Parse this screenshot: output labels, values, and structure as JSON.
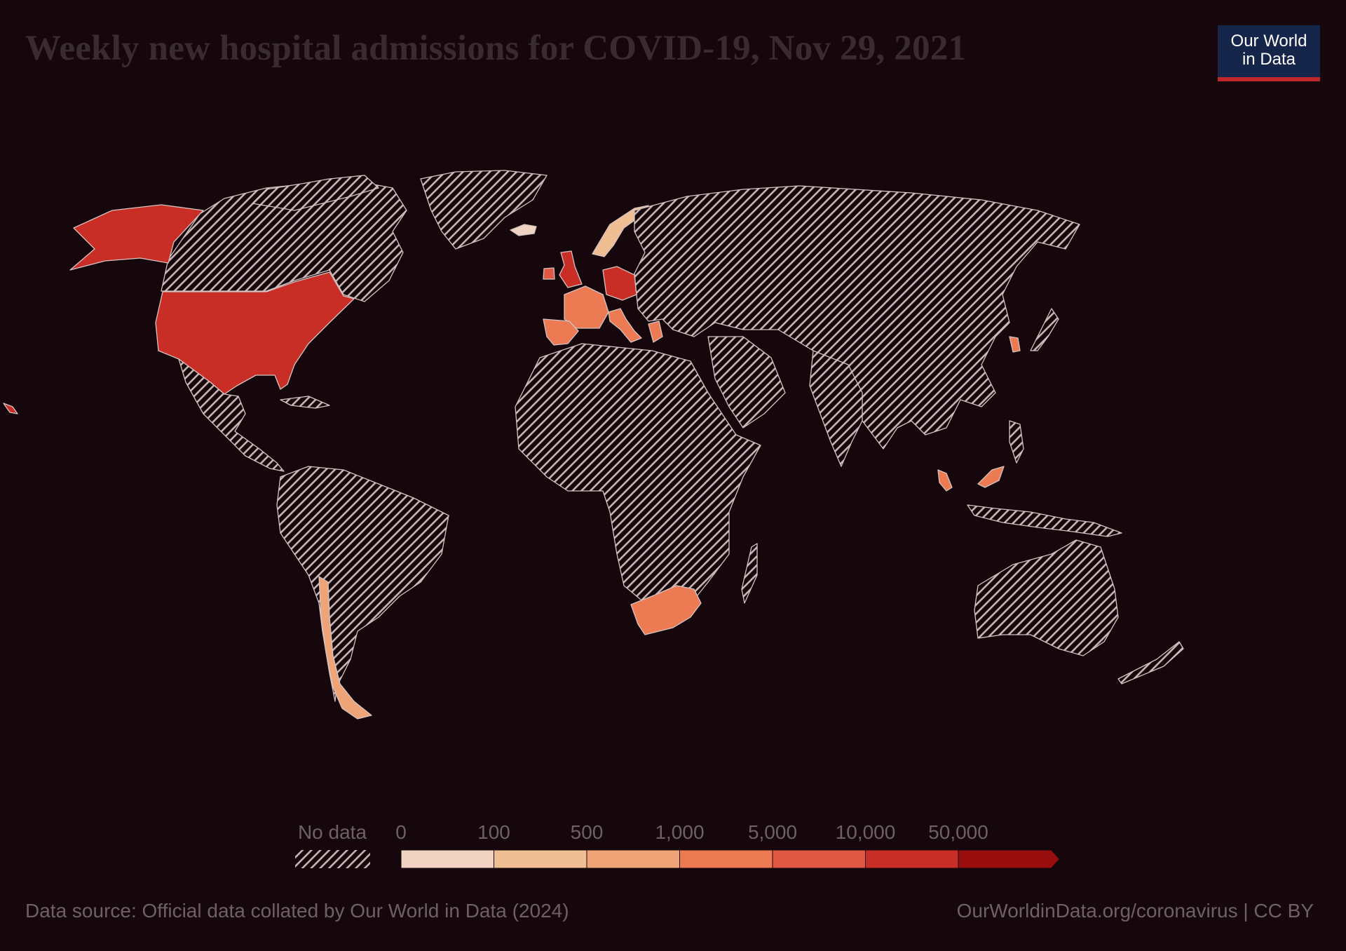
{
  "header": {
    "title": "Weekly new hospital admissions for COVID-19, Nov 29, 2021",
    "logo_line1": "Our World",
    "logo_line2": "in Data"
  },
  "legend": {
    "no_data_label": "No data",
    "bins": [
      {
        "label": "0",
        "color": "#f1d3c4"
      },
      {
        "label": "100",
        "color": "#efbe92"
      },
      {
        "label": "500",
        "color": "#eea476"
      },
      {
        "label": "1,000",
        "color": "#ec7b54"
      },
      {
        "label": "5,000",
        "color": "#e05843"
      },
      {
        "label": "10,000",
        "color": "#c92e26"
      },
      {
        "label": "50,000",
        "color": "#980d0d"
      }
    ]
  },
  "colors": {
    "background": "#15070b",
    "no_data_hatch": "#c9b4b3",
    "united_states": "#c92e26",
    "germany": "#c92e26",
    "france": "#ec7b54",
    "south_africa": "#ec7b54",
    "malaysia": "#ec7b54",
    "chile": "#eea476",
    "norway": "#efbe92",
    "iceland": "#f1d3c4"
  },
  "footer": {
    "source": "Data source: Official data collated by Our World in Data (2024)",
    "link": "OurWorldinData.org/coronavirus | CC BY"
  }
}
